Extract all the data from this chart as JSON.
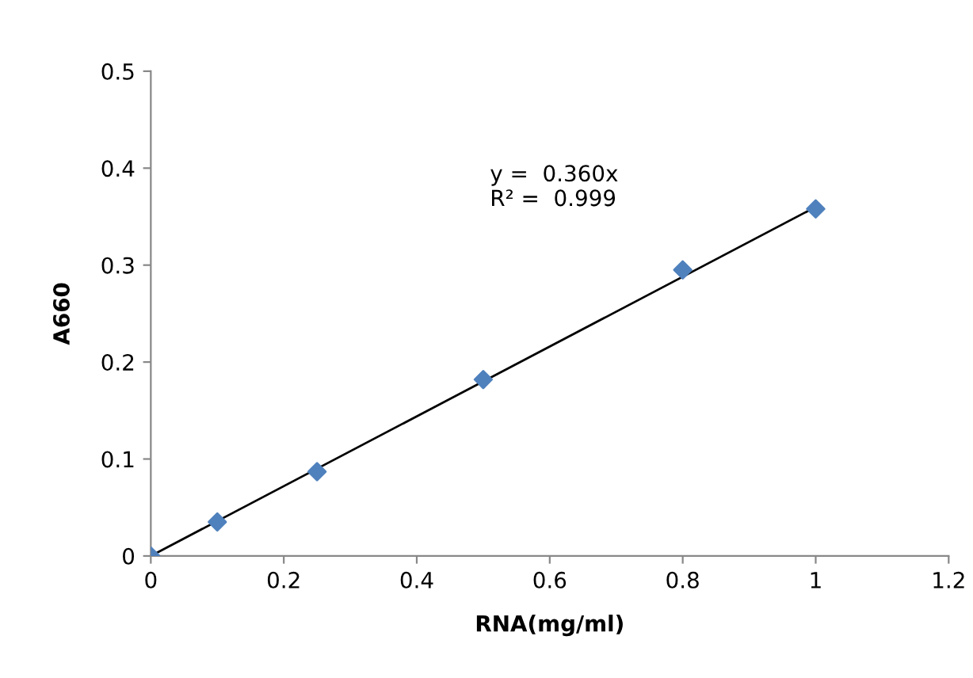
{
  "chart_data": {
    "type": "scatter",
    "xlabel": "RNA(mg/ml)",
    "ylabel": "A660",
    "x": [
      0,
      0.1,
      0.25,
      0.5,
      0.8,
      1.0
    ],
    "series": [
      {
        "color": "#4f81bd",
        "marker": "diamond",
        "values": [
          0,
          0.035,
          0.087,
          0.182,
          0.295,
          0.358
        ]
      },
      {
        "type": "line",
        "color": "#000000",
        "marker": "none",
        "x": [
          0,
          1.0
        ],
        "values": [
          0,
          0.36
        ]
      }
    ],
    "annotations": [
      "y =  0.360x\nR² =  0.999"
    ],
    "xlim": [
      0,
      1.2
    ],
    "xticks": [
      0,
      0.2,
      0.4,
      0.6,
      0.8,
      1,
      1.2
    ],
    "ylim": [
      0,
      0.5
    ],
    "yticks": [
      0,
      0.1,
      0.2,
      0.3,
      0.4,
      0.5
    ],
    "grid": false,
    "legend": false
  }
}
